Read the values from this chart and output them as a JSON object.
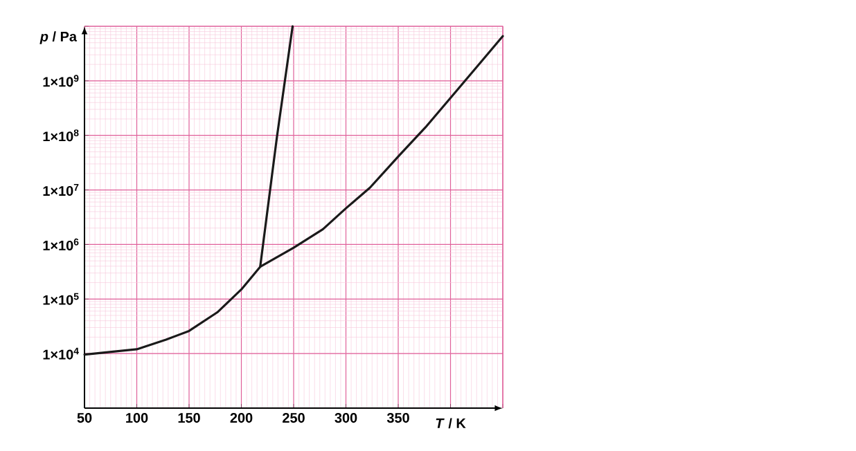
{
  "chart_data": {
    "type": "line",
    "xlabel": "*T* / K",
    "ylabel": "*p* / Pa",
    "xlim": [
      50,
      450
    ],
    "ylim": [
      1000,
      10000000000
    ],
    "xticks": [
      50,
      100,
      150,
      200,
      250,
      300,
      350,
      {
        "value": 400,
        "label": null
      },
      {
        "value": 450,
        "label": null
      }
    ],
    "yticks": [
      {
        "value": 10000,
        "label": "1×10$^{4}$"
      },
      {
        "value": 100000,
        "label": "1×10$^{5}$"
      },
      {
        "value": 1000000,
        "label": "1×10$^{6}$"
      },
      {
        "value": 10000000,
        "label": "1×10$^{7}$"
      },
      {
        "value": 100000000,
        "label": "1×10$^{8}$"
      },
      {
        "value": 1000000000,
        "label": "1×10$^{9}$"
      },
      {
        "value": 10000000000,
        "label": null
      }
    ],
    "log": true,
    "grid": true,
    "marker": "none",
    "line_style": "solid",
    "series": [
      {
        "color": "#1a1a1a",
        "x": [
          50,
          100,
          128,
          150,
          177,
          200,
          218,
          250,
          278,
          300,
          323,
          351,
          376,
          402,
          424,
          450
        ],
        "values": [
          9600,
          12000,
          18000,
          26000,
          57000,
          150000,
          390000,
          870000,
          1900000,
          4600000,
          11000000,
          43000000,
          140000000,
          540000000,
          1700000000,
          6600000000
        ]
      },
      {
        "color": "#1a1a1a",
        "x": [
          218,
          234,
          249
        ],
        "values": [
          390000,
          93000000,
          10000000000
        ]
      }
    ]
  }
}
